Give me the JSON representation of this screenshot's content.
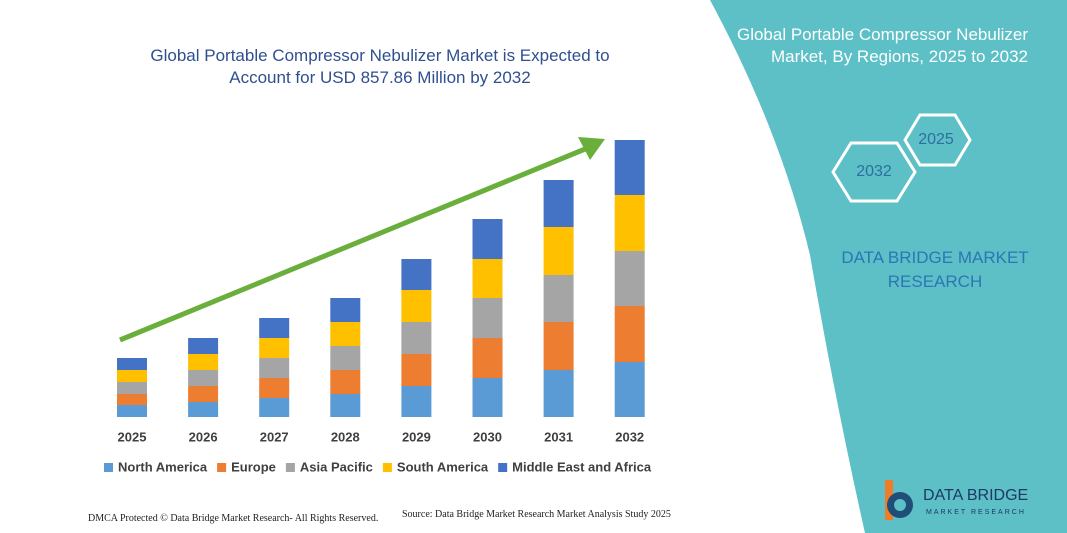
{
  "chart_data": {
    "type": "stacked_bar",
    "title": "Global Portable Compressor Nebulizer Market is Expected to Account for USD 857.86 Million by 2032",
    "categories": [
      "2025",
      "2026",
      "2027",
      "2028",
      "2029",
      "2030",
      "2031",
      "2032"
    ],
    "series": [
      {
        "name": "North America",
        "color": "#5b9bd5",
        "values": [
          12,
          15,
          19,
          23,
          31,
          39,
          47,
          55
        ]
      },
      {
        "name": "Europe",
        "color": "#ed7d31",
        "values": [
          11,
          16,
          20,
          24,
          32,
          40,
          48,
          56
        ]
      },
      {
        "name": "Asia Pacific",
        "color": "#a5a5a5",
        "values": [
          12,
          16,
          20,
          24,
          32,
          40,
          47,
          55
        ]
      },
      {
        "name": "South America",
        "color": "#ffc000",
        "values": [
          12,
          16,
          20,
          24,
          32,
          39,
          48,
          56
        ]
      },
      {
        "name": "Middle East and Africa",
        "color": "#4472c4",
        "values": [
          12,
          16,
          20,
          24,
          31,
          40,
          47,
          55
        ]
      }
    ],
    "ylim": [
      0,
      280
    ]
  },
  "panel": {
    "title": "Global Portable Compressor Nebulizer Market, By Regions, 2025 to 2032",
    "hexagons": [
      "2025",
      "2032"
    ],
    "brand": "DATA BRIDGE MARKET RESEARCH"
  },
  "logo": {
    "name": "DATA BRIDGE",
    "tagline": "MARKET RESEARCH"
  },
  "footer": {
    "left": "DMCA Protected © Data Bridge Market Research-  All Rights Reserved.",
    "source": "Source: Data Bridge Market Research  Market Analysis Study 2025"
  }
}
